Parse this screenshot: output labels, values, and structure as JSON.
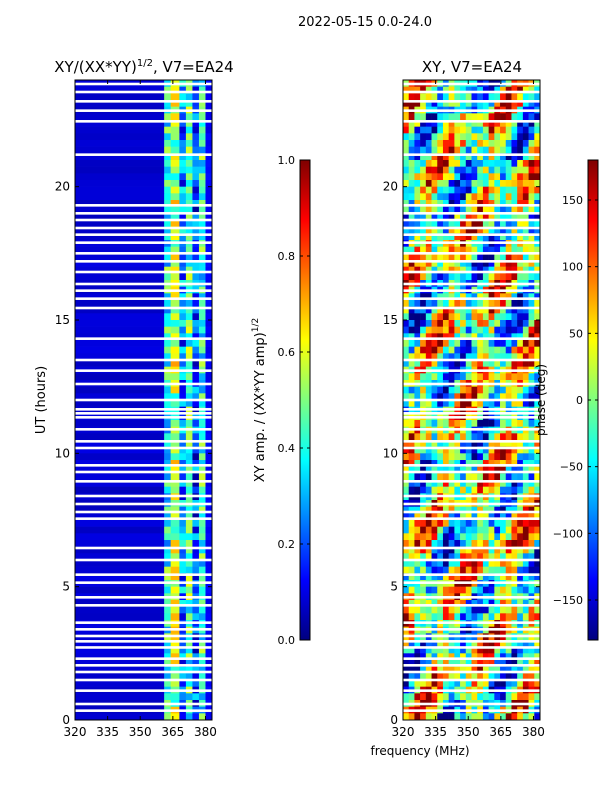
{
  "figure_title": "2022-05-15 0.0-24.0",
  "colors": {
    "jet": [
      "#00007f",
      "#0000ff",
      "#007fff",
      "#00ffff",
      "#7fff7f",
      "#ffff00",
      "#ff7f00",
      "#ff0000",
      "#7f0000"
    ],
    "gap": "#ffffff",
    "axis": "#000000"
  },
  "chart_data": [
    {
      "type": "heatmap",
      "title_main": "XY/(XX*YY)",
      "title_sup": "1/2",
      "title_rest": ", V7=EA24",
      "xlabel": "",
      "ylabel": "UT (hours)",
      "xlim": [
        320,
        383
      ],
      "ylim": [
        0,
        24
      ],
      "xticks": [
        320,
        335,
        350,
        365,
        380
      ],
      "yticks": [
        0,
        5,
        10,
        15,
        20
      ],
      "value_range": [
        0.0,
        1.0
      ],
      "bands": [
        {
          "from": 320,
          "to": 361,
          "level": 0.08
        },
        {
          "from": 361,
          "to": 364,
          "level": 0.4
        },
        {
          "from": 364,
          "to": 368,
          "level": 0.55
        },
        {
          "from": 368,
          "to": 371,
          "level": 0.25
        },
        {
          "from": 371,
          "to": 374,
          "level": 0.45
        },
        {
          "from": 374,
          "to": 377,
          "level": 0.2
        },
        {
          "from": 377,
          "to": 380,
          "level": 0.42
        },
        {
          "from": 380,
          "to": 383,
          "level": 0.12
        }
      ]
    },
    {
      "type": "heatmap",
      "title_main": "XY, V7=EA24",
      "xlabel": "frequency (MHz)",
      "ylabel": "",
      "xlim": [
        320,
        383
      ],
      "ylim": [
        0,
        24
      ],
      "xticks": [
        320,
        335,
        350,
        365,
        380
      ],
      "yticks": [
        0,
        5,
        10,
        15,
        20
      ],
      "value_range": [
        -180,
        180
      ]
    }
  ],
  "colorbars": [
    {
      "label_main": "XY amp. / (XX*YY amp)",
      "label_sup": "1/2",
      "range": [
        0.0,
        1.0
      ],
      "ticks": [
        "0.0",
        "0.2",
        "0.4",
        "0.6",
        "0.8",
        "1.0"
      ],
      "tick_values": [
        0.0,
        0.2,
        0.4,
        0.6,
        0.8,
        1.0
      ]
    },
    {
      "label_main": "phase (deg)",
      "range": [
        -180,
        180
      ],
      "ticks": [
        "−150",
        "−100",
        "−50",
        "0",
        "50",
        "100",
        "150"
      ],
      "tick_values": [
        -150,
        -100,
        -50,
        0,
        50,
        100,
        150
      ]
    }
  ],
  "flagged_rows_ut": [
    0.35,
    0.6,
    1.1,
    1.5,
    1.8,
    2.05,
    2.3,
    2.72,
    2.95,
    3.15,
    3.4,
    3.65,
    4.3,
    4.6,
    5.15,
    5.45,
    6.0,
    6.45,
    7.55,
    7.8,
    8.1,
    8.4,
    8.95,
    9.3,
    9.55,
    10.2,
    10.45,
    10.9,
    11.35,
    11.5,
    11.65,
    12.0,
    12.6,
    13.1,
    13.5,
    14.3,
    15.45,
    15.8,
    16.1,
    16.35,
    16.8,
    17.2,
    17.5,
    17.9,
    18.2,
    18.45,
    18.75,
    19.0,
    19.3,
    21.2,
    22.45,
    22.85,
    23.2,
    23.55,
    23.85
  ]
}
